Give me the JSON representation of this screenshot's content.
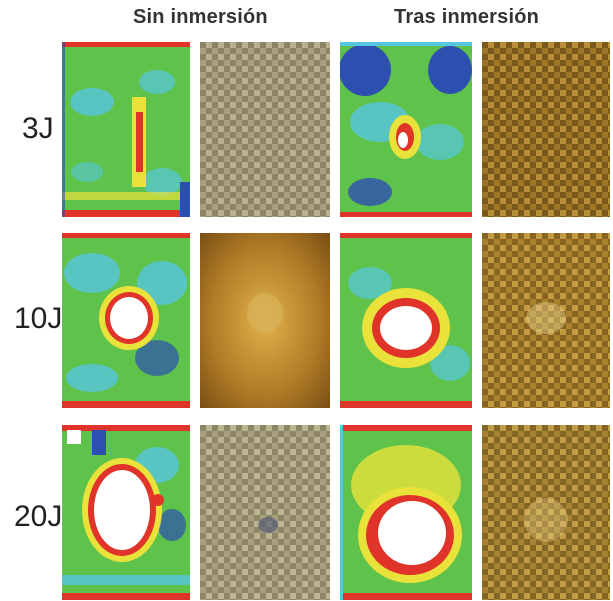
{
  "headers": {
    "without_immersion": "Sin inmersión",
    "after_immersion": "Tras inmersión"
  },
  "rows": [
    {
      "label": "3J"
    },
    {
      "label": "10J"
    },
    {
      "label": "20J"
    }
  ],
  "colors": {
    "cscan_green": "#5fc24a",
    "cscan_cyan": "#57c6e0",
    "cscan_blue": "#2c4fb0",
    "cscan_yellow": "#e8e23a",
    "cscan_red": "#e0342a",
    "damage_white": "#ffffff",
    "fabric_grey": "#a89f7c",
    "fabric_gold": "#a8782a"
  }
}
